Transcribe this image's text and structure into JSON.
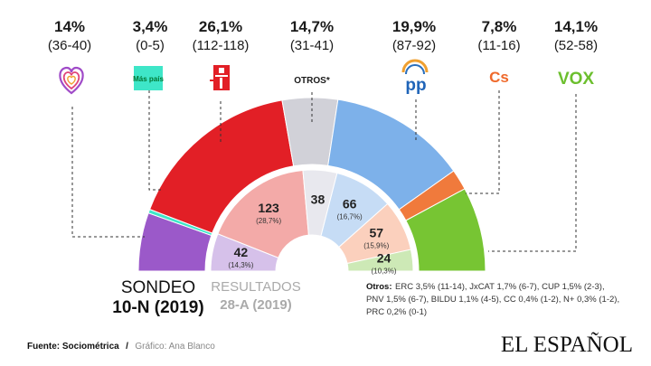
{
  "chart_data": [
    {
      "type": "pie",
      "chart_style": "half-donut parliament",
      "title_line1": "SONDEO",
      "title_line2": "10-N (2019)",
      "series": [
        {
          "name": "",
          "pct": "14%",
          "range": "(36-40)",
          "seats": 38,
          "color": "#9b59c9",
          "logo": "heart-logo-icon"
        },
        {
          "name": "Más país",
          "pct": "3,4%",
          "range": "(0-5)",
          "seats": 2.5,
          "color": "#3ee6c8",
          "logo": "mas-pais-logo-icon"
        },
        {
          "name": "",
          "pct": "26,1%",
          "range": "(112-118)",
          "seats": 115,
          "color": "#e21f26",
          "logo": "psoe-rose-logo-icon"
        },
        {
          "name": "OTROS*",
          "pct": "14,7%",
          "range": "(31-41)",
          "seats": 36,
          "color": "#d1d1d8",
          "logo": ""
        },
        {
          "name": "PP",
          "pct": "19,9%",
          "range": "(87-92)",
          "seats": 89.5,
          "color": "#7db1ea",
          "logo": "pp-logo-icon"
        },
        {
          "name": "Cs",
          "pct": "7,8%",
          "range": "(11-16)",
          "seats": 13.5,
          "color": "#f07a3c",
          "logo": "cs-logo-icon"
        },
        {
          "name": "VOX",
          "pct": "14,1%",
          "range": "(52-58)",
          "seats": 55,
          "color": "#77c533",
          "logo": "vox-logo-icon"
        }
      ]
    },
    {
      "type": "pie",
      "chart_style": "half-donut parliament",
      "title_line1": "RESULTADOS",
      "title_line2": "28-A (2019)",
      "series": [
        {
          "seats": 42,
          "pct": "(14,3%)",
          "color": "#d6c1ea"
        },
        {
          "seats": 123,
          "pct": "(28,7%)",
          "color": "#f3aaa8"
        },
        {
          "seats": 38,
          "pct": "",
          "color": "#e8e8ee"
        },
        {
          "seats": 66,
          "pct": "(16,7%)",
          "color": "#c6dcf5"
        },
        {
          "seats": 57,
          "pct": "(15,9%)",
          "color": "#fbd0bd"
        },
        {
          "seats": 24,
          "pct": "(10,3%)",
          "color": "#cde9b6"
        }
      ]
    }
  ],
  "otros_note": {
    "heading": "Otros:",
    "line1": "ERC 3,5% (11-14), JxCAT 1,7% (6-7), CUP 1,5% (2-3),",
    "line2": "PNV  1,5% (6-7), BILDU 1,1% (4-5),  CC  0,4% (1-2), N+ 0,3% (1-2),",
    "line3": "PRC 0,2% (0-1)"
  },
  "source": {
    "label": "Fuente: Sociométrica",
    "separator": "/",
    "credit": "Gráfico: Ana Blanco"
  },
  "brand": "EL ESPAÑOL",
  "logos": {
    "mas_pais": "Más país",
    "pp": "pp",
    "cs": "Cs",
    "vox": "VOX"
  }
}
